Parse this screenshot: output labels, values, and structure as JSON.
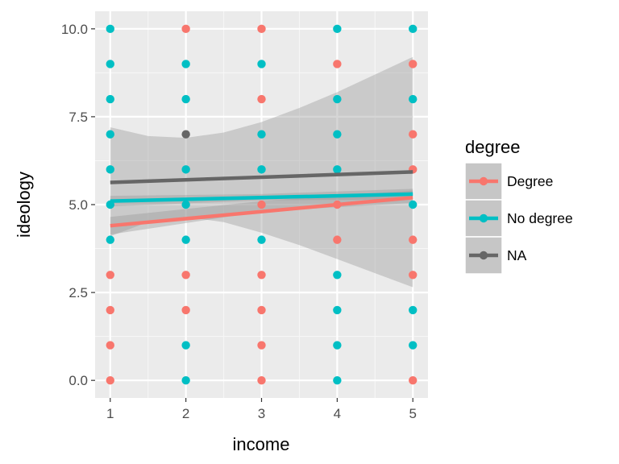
{
  "chart_data": {
    "type": "scatter",
    "xlabel": "income",
    "ylabel": "ideology",
    "xlim": [
      0.8,
      5.2
    ],
    "ylim": [
      -0.5,
      10.5
    ],
    "xticks": [
      1,
      2,
      3,
      4,
      5
    ],
    "xtick_labels": [
      "1",
      "2",
      "3",
      "4",
      "5"
    ],
    "yticks": [
      0,
      2.5,
      5,
      7.5,
      10
    ],
    "ytick_labels": [
      "0.0",
      "2.5",
      "5.0",
      "7.5",
      "10.0"
    ],
    "grid": true,
    "legend": {
      "title": "degree",
      "position": "right",
      "entries": [
        "Degree",
        "No degree",
        "NA"
      ]
    },
    "series": [
      {
        "name": "Degree",
        "color": "#f8766d",
        "points": [
          [
            1,
            0
          ],
          [
            1,
            1
          ],
          [
            1,
            2
          ],
          [
            1,
            3
          ],
          [
            2,
            10
          ],
          [
            2,
            3
          ],
          [
            2,
            2
          ],
          [
            3,
            10
          ],
          [
            3,
            8
          ],
          [
            3,
            5
          ],
          [
            3,
            3
          ],
          [
            3,
            2
          ],
          [
            3,
            1
          ],
          [
            3,
            0
          ],
          [
            4,
            9
          ],
          [
            4,
            5
          ],
          [
            4,
            4
          ],
          [
            5,
            9
          ],
          [
            5,
            7
          ],
          [
            5,
            6
          ],
          [
            5,
            4
          ],
          [
            5,
            3
          ],
          [
            5,
            0
          ]
        ],
        "trend": {
          "x": [
            1,
            5
          ],
          "y": [
            4.4,
            5.2
          ]
        },
        "band": {
          "x": [
            1,
            3,
            5
          ],
          "lower": [
            4.15,
            4.8,
            5.05
          ],
          "upper": [
            4.65,
            5.1,
            5.4
          ]
        }
      },
      {
        "name": "No degree",
        "color": "#00bfc4",
        "points": [
          [
            1,
            10
          ],
          [
            1,
            9
          ],
          [
            1,
            8
          ],
          [
            1,
            7
          ],
          [
            1,
            6
          ],
          [
            1,
            5
          ],
          [
            1,
            4
          ],
          [
            2,
            9
          ],
          [
            2,
            8
          ],
          [
            2,
            6
          ],
          [
            2,
            5
          ],
          [
            2,
            4
          ],
          [
            2,
            1
          ],
          [
            2,
            0
          ],
          [
            3,
            9
          ],
          [
            3,
            7
          ],
          [
            3,
            6
          ],
          [
            3,
            4
          ],
          [
            4,
            10
          ],
          [
            4,
            8
          ],
          [
            4,
            7
          ],
          [
            4,
            6
          ],
          [
            4,
            3
          ],
          [
            4,
            2
          ],
          [
            4,
            1
          ],
          [
            4,
            0
          ],
          [
            5,
            10
          ],
          [
            5,
            8
          ],
          [
            5,
            5
          ],
          [
            5,
            2
          ],
          [
            5,
            1
          ]
        ],
        "trend": {
          "x": [
            1,
            5
          ],
          "y": [
            5.1,
            5.3
          ]
        },
        "band": {
          "x": [
            1,
            3,
            5
          ],
          "lower": [
            4.95,
            5.12,
            5.15
          ],
          "upper": [
            5.25,
            5.3,
            5.45
          ]
        }
      },
      {
        "name": "NA",
        "color": "#666666",
        "points": [
          [
            2,
            7
          ]
        ],
        "trend": {
          "x": [
            1,
            5
          ],
          "y": [
            5.63,
            5.93
          ]
        },
        "band": {
          "x": [
            1,
            1.5,
            2,
            2.5,
            3,
            3.5,
            4,
            4.5,
            5
          ],
          "lower": [
            4.1,
            4.5,
            4.65,
            4.5,
            4.2,
            3.85,
            3.45,
            3.05,
            2.65
          ],
          "upper": [
            7.2,
            6.95,
            6.9,
            7.05,
            7.35,
            7.75,
            8.2,
            8.7,
            9.2
          ]
        }
      }
    ]
  }
}
